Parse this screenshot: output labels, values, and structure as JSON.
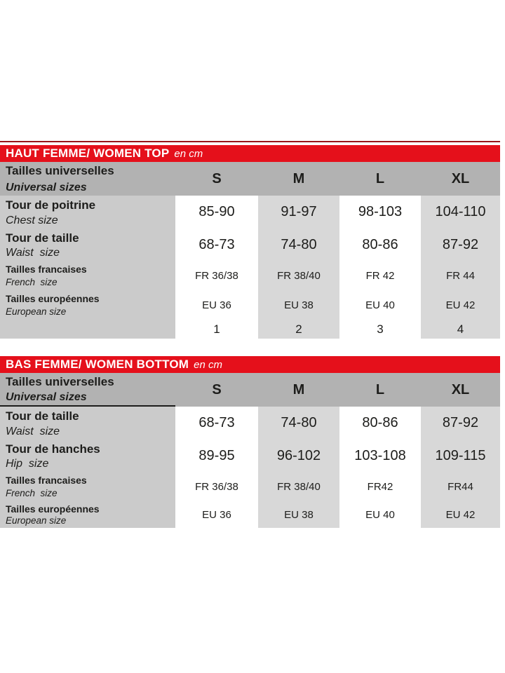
{
  "colors": {
    "accent_red": "#e5101b",
    "top_rule_red": "#99161a",
    "header_gray": "#b2b2b2",
    "label_gray": "#cbcbcb",
    "cell_gray": "#d8d8d8",
    "text": "#1d1d1b"
  },
  "tables": [
    {
      "title": "HAUT FEMME/ WOMEN TOP",
      "unit": "en cm",
      "header": {
        "fr": "Tailles universelles",
        "en": "Universal sizes",
        "sizes": [
          "S",
          "M",
          "L",
          "XL"
        ]
      },
      "rows": [
        {
          "fr": "Tour de poitrine",
          "en": "Chest size",
          "values": [
            "85-90",
            "91-97",
            "98-103",
            "104-110"
          ]
        },
        {
          "fr": "Tour de taille",
          "en": "Waist  size",
          "values": [
            "68-73",
            "74-80",
            "80-86",
            "87-92"
          ]
        },
        {
          "fr": "Tailles francaises",
          "en": "French  size",
          "values": [
            "FR 36/38",
            "FR 38/40",
            "FR 42",
            "FR 44"
          ]
        },
        {
          "fr": "Tailles européennes",
          "en": "European size",
          "values": [
            "EU 36",
            "EU 38",
            "EU 40",
            "EU 42"
          ]
        }
      ],
      "footer_numbers": [
        "1",
        "2",
        "3",
        "4"
      ]
    },
    {
      "title": "BAS FEMME/ WOMEN BOTTOM",
      "unit": "en cm",
      "header": {
        "fr": "Tailles universelles",
        "en": "Universal sizes",
        "sizes": [
          "S",
          "M",
          "L",
          "XL"
        ]
      },
      "rows": [
        {
          "fr": "Tour de taille",
          "en": "Waist  size",
          "values": [
            "68-73",
            "74-80",
            "80-86",
            "87-92"
          ]
        },
        {
          "fr": "Tour de hanches",
          "en": "Hip  size",
          "values": [
            "89-95",
            "96-102",
            "103-108",
            "109-115"
          ]
        },
        {
          "fr": "Tailles francaises",
          "en": "French  size",
          "values": [
            "FR 36/38",
            "FR 38/40",
            "FR42",
            "FR44"
          ]
        },
        {
          "fr": "Tailles européennes",
          "en": "European size",
          "values": [
            "EU 36",
            "EU 38",
            "EU 40",
            "EU 42"
          ]
        }
      ]
    }
  ]
}
